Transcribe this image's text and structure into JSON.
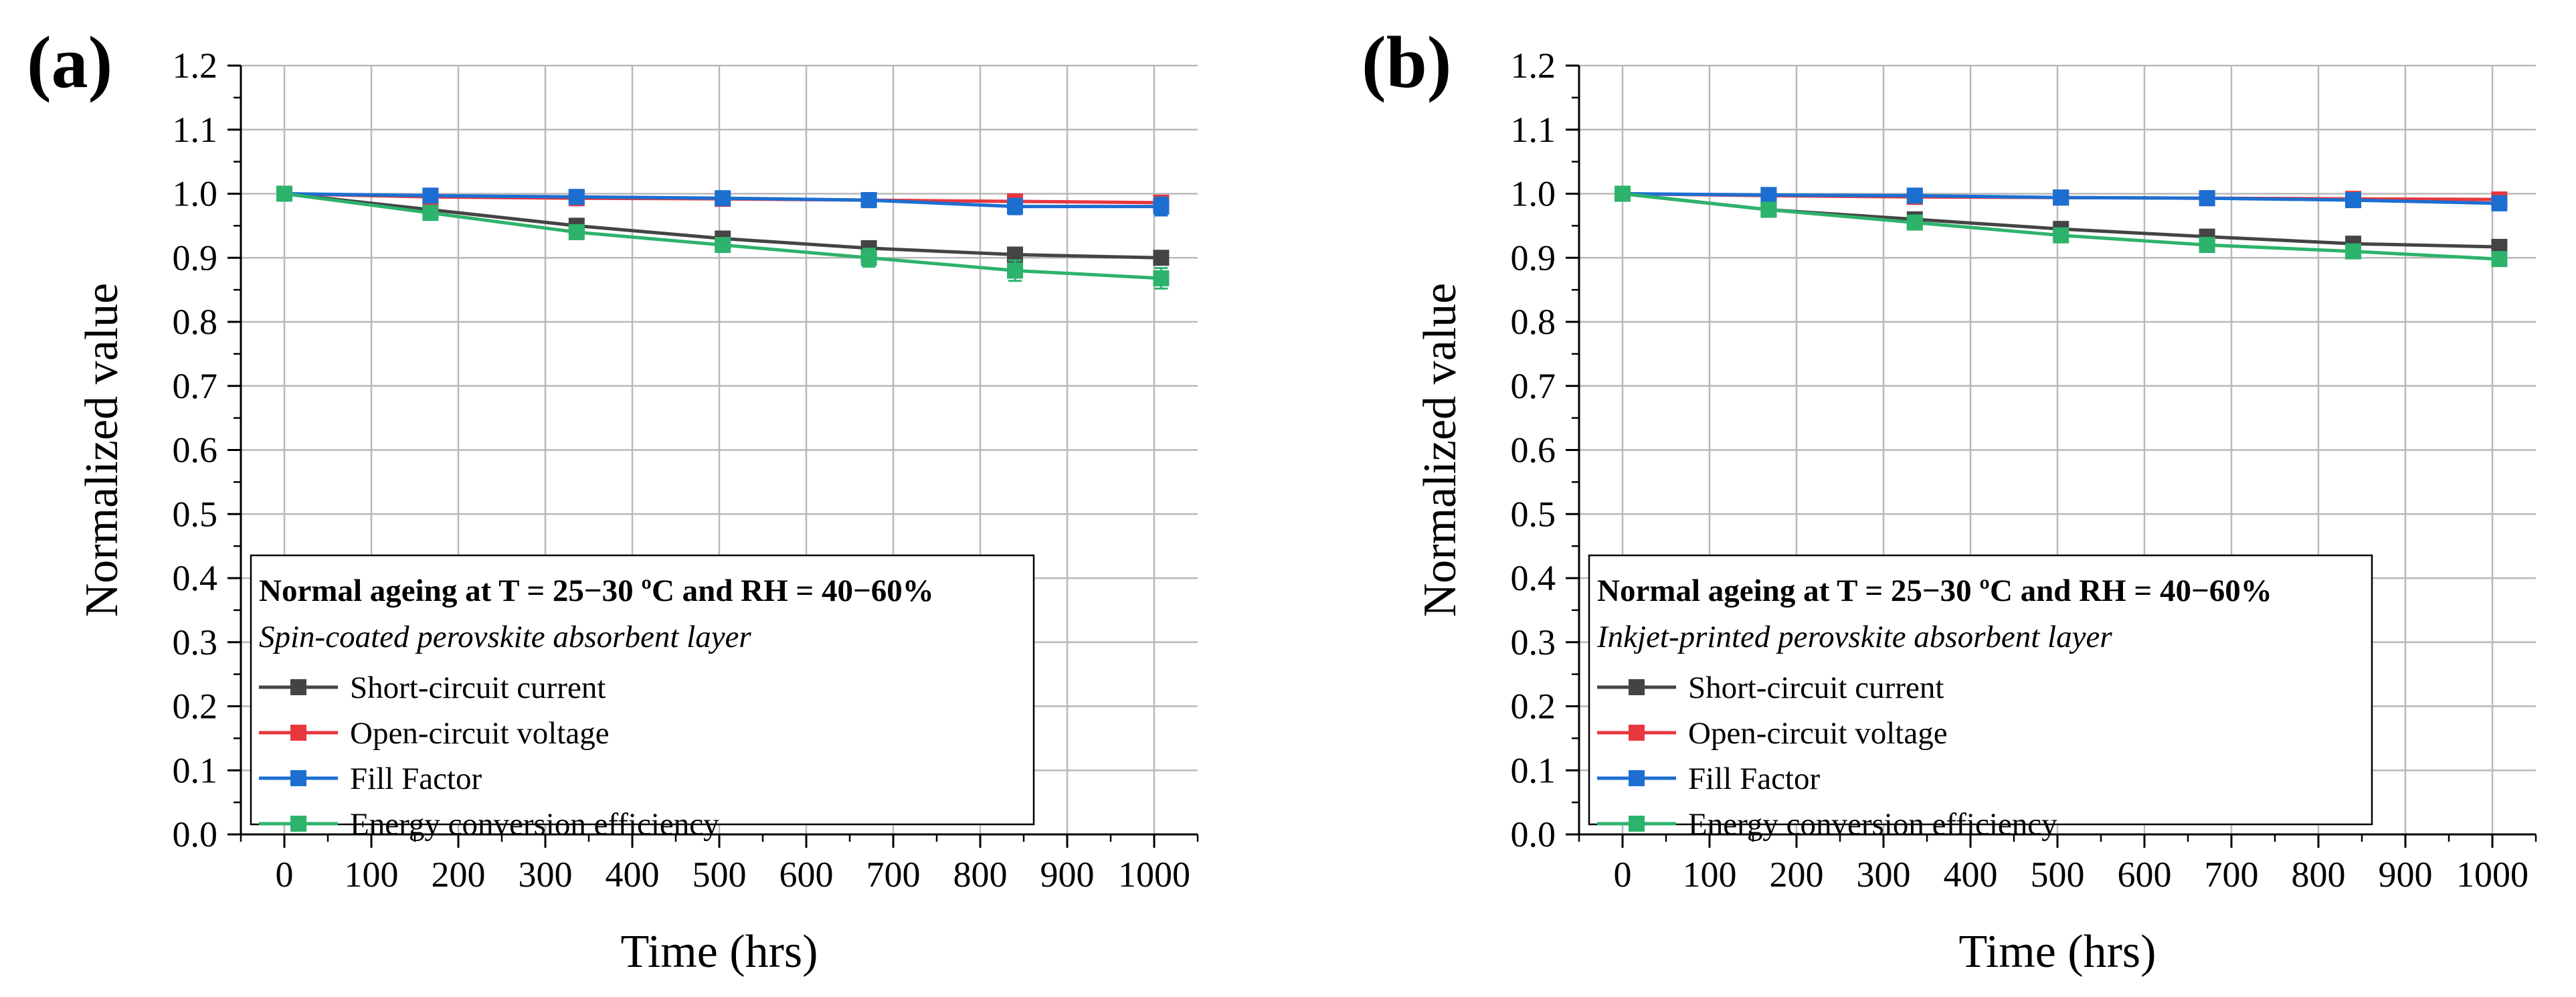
{
  "colors": {
    "short_circuit": "#444444",
    "open_circuit": "#e8373f",
    "fill_factor": "#1c6fd1",
    "efficiency": "#2db36b",
    "grid": "#b9b9b9"
  },
  "chart_data": [
    {
      "panel": "(a)",
      "type": "line",
      "xlabel": "Time (hrs)",
      "ylabel": "Normalized value",
      "xlim": [
        -50,
        1050
      ],
      "ylim": [
        0,
        1.2
      ],
      "xticks": [
        0,
        100,
        200,
        300,
        400,
        500,
        600,
        700,
        800,
        900,
        1000
      ],
      "yticks": [
        0.0,
        0.1,
        0.2,
        0.3,
        0.4,
        0.5,
        0.6,
        0.7,
        0.8,
        0.9,
        1.0,
        1.1,
        1.2
      ],
      "grid": true,
      "legend": {
        "placement": "bottom-left",
        "heading": "Normal ageing at T = 25−30 ºC and RH = 40−60%",
        "subheading": "Spin-coated perovskite absorbent layer"
      },
      "x": [
        0,
        168,
        336,
        504,
        672,
        840,
        1008
      ],
      "series": [
        {
          "name": "Short-circuit current",
          "color_key": "short_circuit",
          "values": [
            1.0,
            0.975,
            0.95,
            0.93,
            0.915,
            0.905,
            0.9
          ],
          "errors": [
            0,
            0.004,
            0.006,
            0.008,
            0.01,
            0.008,
            0.006
          ]
        },
        {
          "name": "Open-circuit voltage",
          "color_key": "open_circuit",
          "values": [
            1.0,
            0.995,
            0.993,
            0.992,
            0.99,
            0.988,
            0.986
          ],
          "errors": [
            0,
            0.003,
            0.004,
            0.004,
            0.005,
            0.006,
            0.006
          ]
        },
        {
          "name": "Fill Factor",
          "color_key": "fill_factor",
          "values": [
            1.0,
            0.997,
            0.995,
            0.993,
            0.99,
            0.98,
            0.98
          ],
          "errors": [
            0,
            0.005,
            0.006,
            0.006,
            0.008,
            0.012,
            0.014
          ]
        },
        {
          "name": "Energy conversion efficiency",
          "color_key": "efficiency",
          "values": [
            1.0,
            0.97,
            0.94,
            0.92,
            0.9,
            0.88,
            0.868
          ],
          "errors": [
            0,
            0.006,
            0.008,
            0.01,
            0.014,
            0.016,
            0.016
          ]
        }
      ]
    },
    {
      "panel": "(b)",
      "type": "line",
      "xlabel": "Time (hrs)",
      "ylabel": "Normalized value",
      "xlim": [
        -50,
        1050
      ],
      "ylim": [
        0,
        1.2
      ],
      "xticks": [
        0,
        100,
        200,
        300,
        400,
        500,
        600,
        700,
        800,
        900,
        1000
      ],
      "yticks": [
        0.0,
        0.1,
        0.2,
        0.3,
        0.4,
        0.5,
        0.6,
        0.7,
        0.8,
        0.9,
        1.0,
        1.1,
        1.2
      ],
      "grid": true,
      "legend": {
        "placement": "bottom-left",
        "heading": "Normal ageing at T = 25−30 ºC and RH = 40−60%",
        "subheading": "Inkjet-printed perovskite absorbent layer"
      },
      "x": [
        0,
        168,
        336,
        504,
        672,
        840,
        1008
      ],
      "series": [
        {
          "name": "Short-circuit current",
          "color_key": "short_circuit",
          "values": [
            1.0,
            0.975,
            0.96,
            0.945,
            0.933,
            0.922,
            0.917
          ],
          "errors": [
            0,
            0.003,
            0.004,
            0.005,
            0.006,
            0.006,
            0.006
          ]
        },
        {
          "name": "Open-circuit voltage",
          "color_key": "open_circuit",
          "values": [
            1.0,
            0.997,
            0.995,
            0.994,
            0.993,
            0.992,
            0.991
          ],
          "errors": [
            0,
            0.003,
            0.003,
            0.004,
            0.004,
            0.005,
            0.005
          ]
        },
        {
          "name": "Fill Factor",
          "color_key": "fill_factor",
          "values": [
            1.0,
            0.998,
            0.997,
            0.994,
            0.993,
            0.99,
            0.985
          ],
          "errors": [
            0,
            0.004,
            0.004,
            0.005,
            0.005,
            0.006,
            0.008
          ]
        },
        {
          "name": "Energy conversion efficiency",
          "color_key": "efficiency",
          "values": [
            1.0,
            0.975,
            0.955,
            0.935,
            0.92,
            0.91,
            0.898
          ],
          "errors": [
            0,
            0.004,
            0.005,
            0.006,
            0.007,
            0.008,
            0.008
          ]
        }
      ]
    }
  ]
}
